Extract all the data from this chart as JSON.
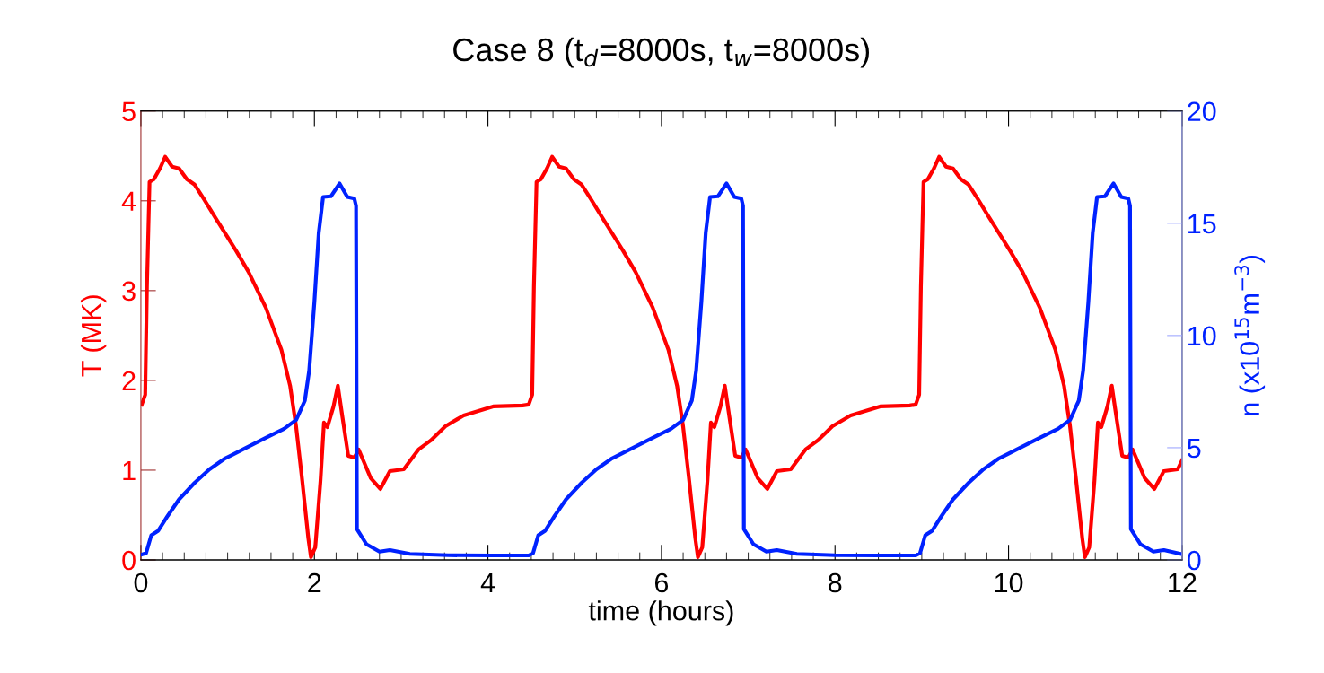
{
  "chart_data": {
    "type": "line",
    "title": "Case 8 (t$_{d}$=8000s, t$_{w}$=8000s)",
    "xlabel": "time (hours)",
    "ylabel": "T (MK)",
    "y2label": "n (x10$^{15}$m$^{−3}$)",
    "xlim": [
      0,
      12
    ],
    "xticks": [
      0,
      2,
      4,
      6,
      8,
      10,
      12
    ],
    "ylim": [
      0,
      5
    ],
    "yticks": [
      0,
      1,
      2,
      3,
      4,
      5
    ],
    "y2lim": [
      0,
      20
    ],
    "y2ticks": [
      0,
      5,
      10,
      15,
      20
    ],
    "grid": false,
    "marker": "none",
    "line_style": "solid",
    "series": [
      {
        "color": "#ff0000",
        "axis": "y",
        "x": [
          0.01,
          0.05,
          0.07,
          0.1,
          0.15,
          0.22,
          0.28,
          0.36,
          0.44,
          0.53,
          0.62,
          0.72,
          0.86,
          1.1,
          1.24,
          1.44,
          1.62,
          1.72,
          1.79,
          1.86,
          1.93,
          1.96,
          2.01,
          2.07,
          2.11,
          2.15,
          2.22,
          2.27,
          2.32,
          2.39,
          2.46,
          2.51,
          2.65,
          2.76,
          2.87,
          3.03,
          3.2,
          3.34,
          3.51,
          3.72,
          4.06,
          4.4,
          4.47,
          4.51,
          4.53,
          4.56,
          4.61,
          4.68,
          4.74,
          4.82,
          4.9,
          4.99,
          5.08,
          5.18,
          5.32,
          5.56,
          5.7,
          5.9,
          6.08,
          6.18,
          6.25,
          6.32,
          6.39,
          6.42,
          6.47,
          6.53,
          6.57,
          6.61,
          6.68,
          6.73,
          6.78,
          6.85,
          6.92,
          6.97,
          7.11,
          7.22,
          7.33,
          7.49,
          7.66,
          7.8,
          7.97,
          8.18,
          8.52,
          8.86,
          8.93,
          8.97,
          8.99,
          9.02,
          9.07,
          9.14,
          9.2,
          9.28,
          9.36,
          9.45,
          9.54,
          9.64,
          9.78,
          10.02,
          10.16,
          10.36,
          10.54,
          10.64,
          10.71,
          10.78,
          10.85,
          10.88,
          10.93,
          10.99,
          11.03,
          11.07,
          11.14,
          11.19,
          11.24,
          11.31,
          11.38,
          11.43,
          11.57,
          11.68,
          11.79,
          11.95,
          12.0
        ],
        "values": [
          1.73,
          1.84,
          3.04,
          4.21,
          4.24,
          4.36,
          4.49,
          4.38,
          4.36,
          4.24,
          4.18,
          4.03,
          3.81,
          3.44,
          3.21,
          2.81,
          2.34,
          1.94,
          1.48,
          0.88,
          0.24,
          0.03,
          0.14,
          0.88,
          1.53,
          1.48,
          1.71,
          1.94,
          1.61,
          1.16,
          1.14,
          1.23,
          0.91,
          0.79,
          0.99,
          1.01,
          1.23,
          1.33,
          1.49,
          1.61,
          1.71,
          1.72,
          1.73,
          1.84,
          3.04,
          4.21,
          4.24,
          4.36,
          4.49,
          4.38,
          4.36,
          4.24,
          4.18,
          4.03,
          3.81,
          3.44,
          3.21,
          2.81,
          2.34,
          1.94,
          1.48,
          0.88,
          0.24,
          0.03,
          0.14,
          0.88,
          1.53,
          1.48,
          1.71,
          1.94,
          1.61,
          1.16,
          1.14,
          1.23,
          0.91,
          0.79,
          0.99,
          1.01,
          1.23,
          1.33,
          1.49,
          1.61,
          1.71,
          1.72,
          1.73,
          1.84,
          3.04,
          4.21,
          4.24,
          4.36,
          4.49,
          4.38,
          4.36,
          4.24,
          4.18,
          4.03,
          3.81,
          3.44,
          3.21,
          2.81,
          2.34,
          1.94,
          1.48,
          0.88,
          0.24,
          0.03,
          0.14,
          0.88,
          1.53,
          1.48,
          1.71,
          1.94,
          1.61,
          1.16,
          1.14,
          1.23,
          0.91,
          0.79,
          0.99,
          1.01,
          1.11
        ]
      },
      {
        "color": "#0022ff",
        "axis": "y2",
        "x": [
          0.01,
          0.06,
          0.12,
          0.2,
          0.31,
          0.44,
          0.62,
          0.79,
          0.96,
          1.2,
          1.44,
          1.65,
          1.79,
          1.89,
          1.94,
          2.0,
          2.05,
          2.1,
          2.19,
          2.29,
          2.38,
          2.46,
          2.48,
          2.49,
          2.6,
          2.75,
          2.87,
          3.1,
          3.54,
          4.06,
          4.4,
          4.47,
          4.52,
          4.58,
          4.66,
          4.77,
          4.9,
          5.08,
          5.25,
          5.42,
          5.66,
          5.9,
          6.11,
          6.25,
          6.35,
          6.4,
          6.46,
          6.51,
          6.56,
          6.65,
          6.75,
          6.84,
          6.92,
          6.94,
          6.95,
          7.06,
          7.21,
          7.33,
          7.56,
          8.0,
          8.52,
          8.86,
          8.93,
          8.98,
          9.04,
          9.12,
          9.23,
          9.36,
          9.54,
          9.71,
          9.88,
          10.12,
          10.36,
          10.57,
          10.71,
          10.81,
          10.86,
          10.92,
          10.97,
          11.02,
          11.11,
          11.21,
          11.3,
          11.38,
          11.4,
          11.41,
          11.52,
          11.67,
          11.79,
          12.0
        ],
        "values": [
          0.24,
          0.3,
          1.1,
          1.3,
          1.97,
          2.7,
          3.44,
          4.04,
          4.5,
          4.97,
          5.44,
          5.84,
          6.24,
          7.1,
          8.44,
          11.5,
          14.57,
          16.17,
          16.2,
          16.77,
          16.17,
          16.1,
          15.77,
          1.37,
          0.7,
          0.37,
          0.44,
          0.27,
          0.21,
          0.2,
          0.2,
          0.2,
          0.3,
          1.1,
          1.3,
          1.97,
          2.7,
          3.44,
          4.04,
          4.5,
          4.97,
          5.44,
          5.84,
          6.24,
          7.1,
          8.44,
          11.5,
          14.57,
          16.17,
          16.2,
          16.77,
          16.17,
          16.1,
          15.77,
          1.37,
          0.7,
          0.37,
          0.44,
          0.27,
          0.21,
          0.2,
          0.2,
          0.2,
          0.3,
          1.1,
          1.3,
          1.97,
          2.7,
          3.44,
          4.04,
          4.5,
          4.97,
          5.44,
          5.84,
          6.24,
          7.1,
          8.44,
          11.5,
          14.57,
          16.17,
          16.2,
          16.77,
          16.17,
          16.1,
          15.77,
          1.37,
          0.7,
          0.37,
          0.44,
          0.26
        ]
      }
    ]
  }
}
